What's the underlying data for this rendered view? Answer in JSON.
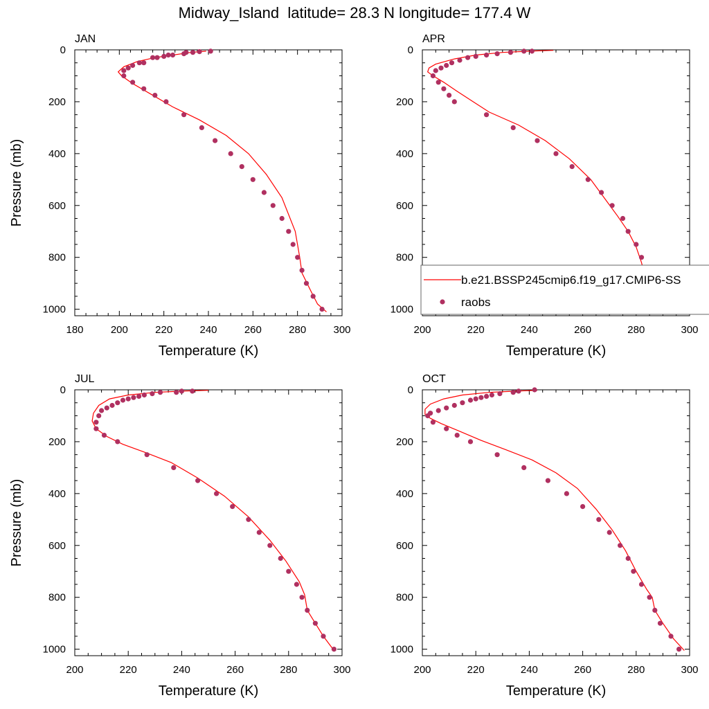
{
  "title": "Midway_Island  latitude= 28.3 N longitude= 177.4 W",
  "colors": {
    "model": "#ff0000",
    "obs": "#b03060"
  },
  "legend": {
    "model_label": "b.e21.BSSP245cmip6.f19_g17.CMIP6-SS",
    "obs_label": "raobs",
    "panel": "APR"
  },
  "chart_data": [
    {
      "type": "scatter",
      "title": "JAN",
      "xlabel": "Temperature (K)",
      "ylabel": "Pressure (mb)",
      "xlim": [
        180,
        300
      ],
      "ylim": [
        1025,
        0
      ],
      "x_ticks": [
        180,
        200,
        220,
        240,
        260,
        280,
        300
      ],
      "y_ticks": [
        0,
        200,
        400,
        600,
        800,
        1000
      ],
      "y_inverted": true,
      "series": [
        {
          "name": "b.e21.BSSP245cmip6.f19_g17.CMIP6-SS",
          "kind": "line",
          "points": [
            [
              239,
              5
            ],
            [
              232,
              10
            ],
            [
              224,
              20
            ],
            [
              216,
              30
            ],
            [
              208,
              45
            ],
            [
              202,
              65
            ],
            [
              199.5,
              85
            ],
            [
              201,
              100
            ],
            [
              206,
              130
            ],
            [
              214,
              170
            ],
            [
              224,
              220
            ],
            [
              236,
              270
            ],
            [
              248,
              330
            ],
            [
              258,
              400
            ],
            [
              266,
              480
            ],
            [
              273,
              570
            ],
            [
              279,
              700
            ],
            [
              281,
              800
            ],
            [
              282,
              860
            ],
            [
              286,
              930
            ],
            [
              289,
              980
            ],
            [
              293,
              1010
            ]
          ]
        },
        {
          "name": "raobs",
          "kind": "points",
          "points": [
            [
              241,
              5
            ],
            [
              236,
              7
            ],
            [
              233,
              10
            ],
            [
              230,
              10
            ],
            [
              229,
              15
            ],
            [
              224,
              20
            ],
            [
              222,
              20
            ],
            [
              220,
              25
            ],
            [
              217,
              30
            ],
            [
              215,
              30
            ],
            [
              211,
              50
            ],
            [
              209,
              50
            ],
            [
              206,
              60
            ],
            [
              204,
              70
            ],
            [
              202,
              80
            ],
            [
              202,
              100
            ],
            [
              206,
              125
            ],
            [
              211,
              150
            ],
            [
              216,
              175
            ],
            [
              221,
              200
            ],
            [
              229,
              250
            ],
            [
              237,
              300
            ],
            [
              243,
              350
            ],
            [
              250,
              400
            ],
            [
              255,
              450
            ],
            [
              260,
              500
            ],
            [
              265,
              550
            ],
            [
              269,
              600
            ],
            [
              273,
              650
            ],
            [
              276,
              700
            ],
            [
              278,
              750
            ],
            [
              280,
              800
            ],
            [
              282,
              850
            ],
            [
              284,
              900
            ],
            [
              287,
              950
            ],
            [
              291,
              1000
            ]
          ]
        }
      ]
    },
    {
      "type": "scatter",
      "title": "APR",
      "xlabel": "Temperature (K)",
      "ylabel": "",
      "xlim": [
        200,
        300
      ],
      "ylim": [
        1025,
        0
      ],
      "x_ticks": [
        200,
        220,
        240,
        260,
        280,
        300
      ],
      "y_ticks": [
        0,
        200,
        400,
        600,
        800,
        1000
      ],
      "y_inverted": true,
      "series": [
        {
          "name": "b.e21.BSSP245cmip6.f19_g17.CMIP6-SS",
          "kind": "line",
          "points": [
            [
              249,
              2
            ],
            [
              240,
              5
            ],
            [
              230,
              10
            ],
            [
              220,
              20
            ],
            [
              212,
              35
            ],
            [
              205,
              55
            ],
            [
              202.5,
              70
            ],
            [
              202,
              85
            ],
            [
              204,
              100
            ],
            [
              208,
              125
            ],
            [
              213,
              160
            ],
            [
              219,
              200
            ],
            [
              225,
              240
            ],
            [
              236,
              290
            ],
            [
              246,
              350
            ],
            [
              255,
              420
            ],
            [
              263,
              500
            ],
            [
              268,
              570
            ],
            [
              273,
              640
            ],
            [
              277,
              700
            ],
            [
              280,
              760
            ],
            [
              282,
              820
            ],
            [
              283,
              860
            ],
            [
              286,
              920
            ],
            [
              290,
              980
            ],
            [
              293,
              1010
            ]
          ]
        },
        {
          "name": "raobs",
          "kind": "points",
          "points": [
            [
              241,
              5
            ],
            [
              238,
              5
            ],
            [
              233,
              10
            ],
            [
              228,
              15
            ],
            [
              224,
              20
            ],
            [
              220,
              25
            ],
            [
              217,
              30
            ],
            [
              214,
              40
            ],
            [
              211,
              50
            ],
            [
              209,
              60
            ],
            [
              207,
              70
            ],
            [
              205,
              80
            ],
            [
              204,
              100
            ],
            [
              206,
              125
            ],
            [
              208,
              150
            ],
            [
              210,
              175
            ],
            [
              212,
              200
            ],
            [
              224,
              250
            ],
            [
              234,
              300
            ],
            [
              243,
              350
            ],
            [
              250,
              400
            ],
            [
              256,
              450
            ],
            [
              262,
              500
            ],
            [
              267,
              550
            ],
            [
              271,
              600
            ],
            [
              275,
              650
            ],
            [
              277,
              700
            ],
            [
              280,
              750
            ],
            [
              282,
              800
            ],
            [
              283,
              850
            ],
            [
              285,
              900
            ],
            [
              288,
              950
            ],
            [
              291,
              1000
            ]
          ]
        }
      ]
    },
    {
      "type": "scatter",
      "title": "JUL",
      "xlabel": "Temperature (K)",
      "ylabel": "Pressure (mb)",
      "xlim": [
        200,
        300
      ],
      "ylim": [
        1025,
        0
      ],
      "x_ticks": [
        200,
        220,
        240,
        260,
        280,
        300
      ],
      "y_ticks": [
        0,
        200,
        400,
        600,
        800,
        1000
      ],
      "y_inverted": true,
      "series": [
        {
          "name": "b.e21.BSSP245cmip6.f19_g17.CMIP6-SS",
          "kind": "line",
          "points": [
            [
              250,
              2
            ],
            [
              240,
              5
            ],
            [
              230,
              10
            ],
            [
              220,
              20
            ],
            [
              213,
              35
            ],
            [
              209,
              60
            ],
            [
              207,
              90
            ],
            [
              206.5,
              120
            ],
            [
              208,
              150
            ],
            [
              212,
              180
            ],
            [
              218,
              210
            ],
            [
              226,
              240
            ],
            [
              236,
              280
            ],
            [
              246,
              340
            ],
            [
              256,
              410
            ],
            [
              265,
              490
            ],
            [
              273,
              580
            ],
            [
              279,
              660
            ],
            [
              284,
              740
            ],
            [
              286,
              790
            ],
            [
              287,
              850
            ],
            [
              290,
              900
            ],
            [
              293,
              950
            ],
            [
              297,
              1005
            ]
          ]
        },
        {
          "name": "raobs",
          "kind": "points",
          "points": [
            [
              244,
              5
            ],
            [
              240,
              5
            ],
            [
              238,
              10
            ],
            [
              232,
              10
            ],
            [
              229,
              15
            ],
            [
              226,
              20
            ],
            [
              224,
              25
            ],
            [
              222,
              30
            ],
            [
              220,
              35
            ],
            [
              218,
              40
            ],
            [
              216,
              50
            ],
            [
              214,
              60
            ],
            [
              212,
              70
            ],
            [
              210,
              80
            ],
            [
              209,
              100
            ],
            [
              208,
              125
            ],
            [
              208,
              150
            ],
            [
              211,
              175
            ],
            [
              216,
              200
            ],
            [
              227,
              250
            ],
            [
              237,
              300
            ],
            [
              246,
              350
            ],
            [
              253,
              400
            ],
            [
              259,
              450
            ],
            [
              265,
              500
            ],
            [
              269,
              550
            ],
            [
              273,
              600
            ],
            [
              277,
              650
            ],
            [
              280,
              700
            ],
            [
              283,
              750
            ],
            [
              285,
              800
            ],
            [
              287,
              850
            ],
            [
              290,
              900
            ],
            [
              293,
              950
            ],
            [
              297,
              1000
            ]
          ]
        }
      ]
    },
    {
      "type": "scatter",
      "title": "OCT",
      "xlabel": "Temperature (K)",
      "ylabel": "",
      "xlim": [
        200,
        300
      ],
      "ylim": [
        1025,
        0
      ],
      "x_ticks": [
        200,
        220,
        240,
        260,
        280,
        300
      ],
      "y_ticks": [
        0,
        200,
        400,
        600,
        800,
        1000
      ],
      "y_inverted": true,
      "series": [
        {
          "name": "b.e21.BSSP245cmip6.f19_g17.CMIP6-SS",
          "kind": "line",
          "points": [
            [
              243,
              2
            ],
            [
              235,
              5
            ],
            [
              225,
              10
            ],
            [
              215,
              20
            ],
            [
              208,
              35
            ],
            [
              203,
              55
            ],
            [
              201,
              75
            ],
            [
              201,
              95
            ],
            [
              203,
              110
            ],
            [
              207,
              130
            ],
            [
              214,
              160
            ],
            [
              222,
              195
            ],
            [
              231,
              230
            ],
            [
              241,
              270
            ],
            [
              250,
              320
            ],
            [
              258,
              380
            ],
            [
              265,
              460
            ],
            [
              271,
              540
            ],
            [
              276,
              620
            ],
            [
              280,
              700
            ],
            [
              284,
              770
            ],
            [
              286,
              800
            ],
            [
              287,
              850
            ],
            [
              290,
              900
            ],
            [
              294,
              960
            ],
            [
              298,
              1005
            ]
          ]
        },
        {
          "name": "raobs",
          "kind": "points",
          "points": [
            [
              242,
              0
            ],
            [
              236,
              5
            ],
            [
              234,
              10
            ],
            [
              229,
              15
            ],
            [
              226,
              20
            ],
            [
              224,
              25
            ],
            [
              222,
              30
            ],
            [
              220,
              35
            ],
            [
              218,
              40
            ],
            [
              215,
              50
            ],
            [
              212,
              60
            ],
            [
              209,
              70
            ],
            [
              206,
              80
            ],
            [
              203,
              90
            ],
            [
              202,
              100
            ],
            [
              204,
              125
            ],
            [
              209,
              150
            ],
            [
              213,
              175
            ],
            [
              218,
              200
            ],
            [
              228,
              250
            ],
            [
              238,
              300
            ],
            [
              247,
              350
            ],
            [
              254,
              400
            ],
            [
              260,
              450
            ],
            [
              266,
              500
            ],
            [
              270,
              550
            ],
            [
              274,
              600
            ],
            [
              277,
              650
            ],
            [
              279,
              700
            ],
            [
              282,
              750
            ],
            [
              285,
              800
            ],
            [
              287,
              850
            ],
            [
              289,
              900
            ],
            [
              293,
              950
            ],
            [
              296,
              1000
            ]
          ]
        }
      ]
    }
  ]
}
